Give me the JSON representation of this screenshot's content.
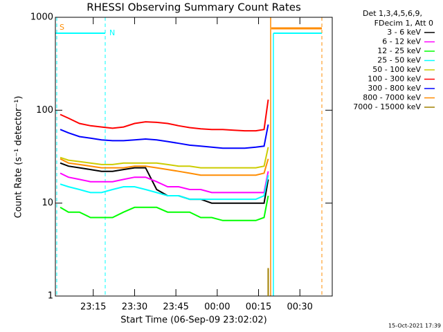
{
  "chart_data": {
    "type": "line",
    "title": "RHESSI Observing Summary Count Rates",
    "xlabel": "Start Time (06-Sep-09 23:02:02)",
    "ylabel": "Count Rate (s⁻¹ detector⁻¹)",
    "legend_header": [
      "Det 1,3,4,5,6,9,",
      "FDecim 1, Att 0"
    ],
    "legend_position": "right",
    "flag_labels": [
      "S",
      "N"
    ],
    "timestamp": "15-Oct-2021 17:39",
    "log_y": true,
    "xlim": [
      1.25,
      101.75
    ],
    "ylim": [
      1,
      1000
    ],
    "xticks": [
      {
        "value": 15,
        "label": "23:15"
      },
      {
        "value": 30,
        "label": "23:30"
      },
      {
        "value": 45,
        "label": "23:45"
      },
      {
        "value": 60,
        "label": "00:00"
      },
      {
        "value": 75,
        "label": "00:15"
      },
      {
        "value": 90,
        "label": "00:30"
      }
    ],
    "yticks": [
      1,
      10,
      100,
      1000
    ],
    "x": [
      3,
      6,
      10,
      14,
      18,
      22,
      26,
      30,
      34,
      38,
      42,
      46,
      50,
      54,
      58,
      62,
      66,
      70,
      74,
      77,
      78.5
    ],
    "series": [
      {
        "name": "3 - 6 keV",
        "color": "#000000",
        "values": [
          27,
          25,
          24,
          23,
          22,
          22,
          23,
          24,
          24,
          14,
          12,
          12,
          11,
          11,
          10,
          10,
          10,
          10,
          10,
          10,
          18
        ]
      },
      {
        "name": "6 - 12 keV",
        "color": "#ff00ff",
        "values": [
          21,
          19,
          18,
          17,
          17,
          17,
          18,
          19,
          19,
          17,
          15,
          15,
          14,
          14,
          13,
          13,
          13,
          13,
          13,
          13,
          22
        ]
      },
      {
        "name": "12 - 25 keV",
        "color": "#00ff00",
        "values": [
          9,
          8,
          8,
          7,
          7,
          7,
          8,
          9,
          9,
          9,
          8,
          8,
          8,
          7,
          7,
          6.5,
          6.5,
          6.5,
          6.5,
          7,
          12
        ]
      },
      {
        "name": "25 - 50 keV",
        "color": "#00ffff",
        "values": [
          16,
          15,
          14,
          13,
          13,
          14,
          15,
          15,
          14,
          13,
          12,
          12,
          11,
          11,
          11,
          11,
          11,
          11,
          11,
          12,
          20
        ]
      },
      {
        "name": "50 - 100 keV",
        "color": "#cccc00",
        "values": [
          31,
          29,
          28,
          27,
          26,
          26,
          27,
          27,
          27,
          27,
          26,
          25,
          25,
          24,
          24,
          24,
          24,
          24,
          24,
          25,
          40
        ]
      },
      {
        "name": "100 - 300 keV",
        "color": "#ff0000",
        "values": [
          90,
          82,
          72,
          68,
          66,
          64,
          66,
          72,
          75,
          74,
          72,
          68,
          65,
          63,
          62,
          62,
          61,
          60,
          60,
          62,
          130
        ]
      },
      {
        "name": "300 - 800 keV",
        "color": "#0000ff",
        "values": [
          62,
          57,
          52,
          50,
          48,
          47,
          47,
          48,
          49,
          48,
          46,
          44,
          42,
          41,
          40,
          39,
          39,
          39,
          40,
          41,
          70
        ]
      },
      {
        "name": "800 - 7000 keV",
        "color": "#ff8c00",
        "values": [
          30,
          27,
          26,
          25,
          24,
          24,
          24,
          25,
          25,
          24,
          23,
          22,
          21,
          20,
          20,
          20,
          20,
          20,
          20,
          21,
          30
        ]
      },
      {
        "name": "7000 - 15000 keV",
        "color": "#a08000",
        "values": [
          null,
          null,
          null,
          null,
          null,
          null,
          null,
          null,
          null,
          null,
          null,
          null,
          null,
          null,
          null,
          null,
          null,
          null,
          null,
          null,
          2
        ]
      }
    ]
  }
}
